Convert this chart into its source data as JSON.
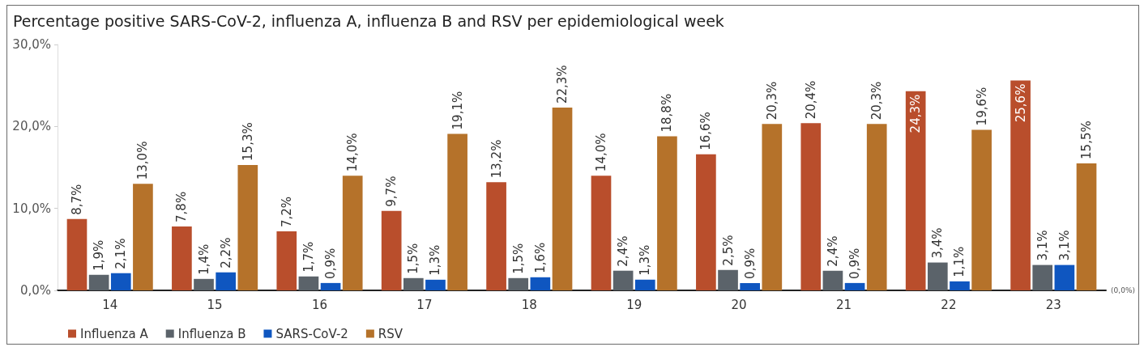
{
  "chart_data": {
    "type": "bar",
    "title": "Percentage positive SARS-CoV-2, influenza A, influenza B and RSV per epidemiological week",
    "categories": [
      "14",
      "15",
      "16",
      "17",
      "18",
      "19",
      "20",
      "21",
      "22",
      "23"
    ],
    "series": [
      {
        "name": "Influenza A",
        "color": "#b94e2c",
        "values": [
          8.7,
          7.8,
          7.2,
          9.7,
          13.2,
          14.0,
          16.6,
          20.4,
          24.3,
          25.6
        ],
        "value_labels": [
          "8,7%",
          "7,8%",
          "7,2%",
          "9,7%",
          "13,2%",
          "14,0%",
          "16,6%",
          "20,4%",
          "24,3%",
          "25,6%"
        ]
      },
      {
        "name": "Influenza B",
        "color": "#5b636a",
        "values": [
          1.9,
          1.4,
          1.7,
          1.5,
          1.5,
          2.4,
          2.5,
          2.4,
          3.4,
          3.1
        ],
        "value_labels": [
          "1,9%",
          "1,4%",
          "1,7%",
          "1,5%",
          "1,5%",
          "2,4%",
          "2,5%",
          "2,4%",
          "3,4%",
          "3,1%"
        ]
      },
      {
        "name": "SARS-CoV-2",
        "color": "#0f56c0",
        "values": [
          2.1,
          2.2,
          0.9,
          1.3,
          1.6,
          1.3,
          0.9,
          0.9,
          1.1,
          3.1
        ],
        "value_labels": [
          "2,1%",
          "2,2%",
          "0,9%",
          "1,3%",
          "1,6%",
          "1,3%",
          "0,9%",
          "0,9%",
          "1,1%",
          "3,1%"
        ]
      },
      {
        "name": "RSV",
        "color": "#b5722a",
        "values": [
          13.0,
          15.3,
          14.0,
          19.1,
          22.3,
          18.8,
          20.3,
          20.3,
          19.6,
          15.5
        ],
        "value_labels": [
          "13,0%",
          "15,3%",
          "14,0%",
          "19,1%",
          "22,3%",
          "18,8%",
          "20,3%",
          "20,3%",
          "19,6%",
          "15,5%"
        ]
      }
    ],
    "ylim": [
      0,
      30
    ],
    "yticks": [
      {
        "value": 0,
        "label": "0,0%"
      },
      {
        "value": 10,
        "label": "10,0%"
      },
      {
        "value": 20,
        "label": "20,0%"
      },
      {
        "value": 30,
        "label": "30,0%"
      }
    ],
    "grid": false,
    "legend": "bottom left",
    "annotations": [
      "(0,0%)"
    ]
  }
}
